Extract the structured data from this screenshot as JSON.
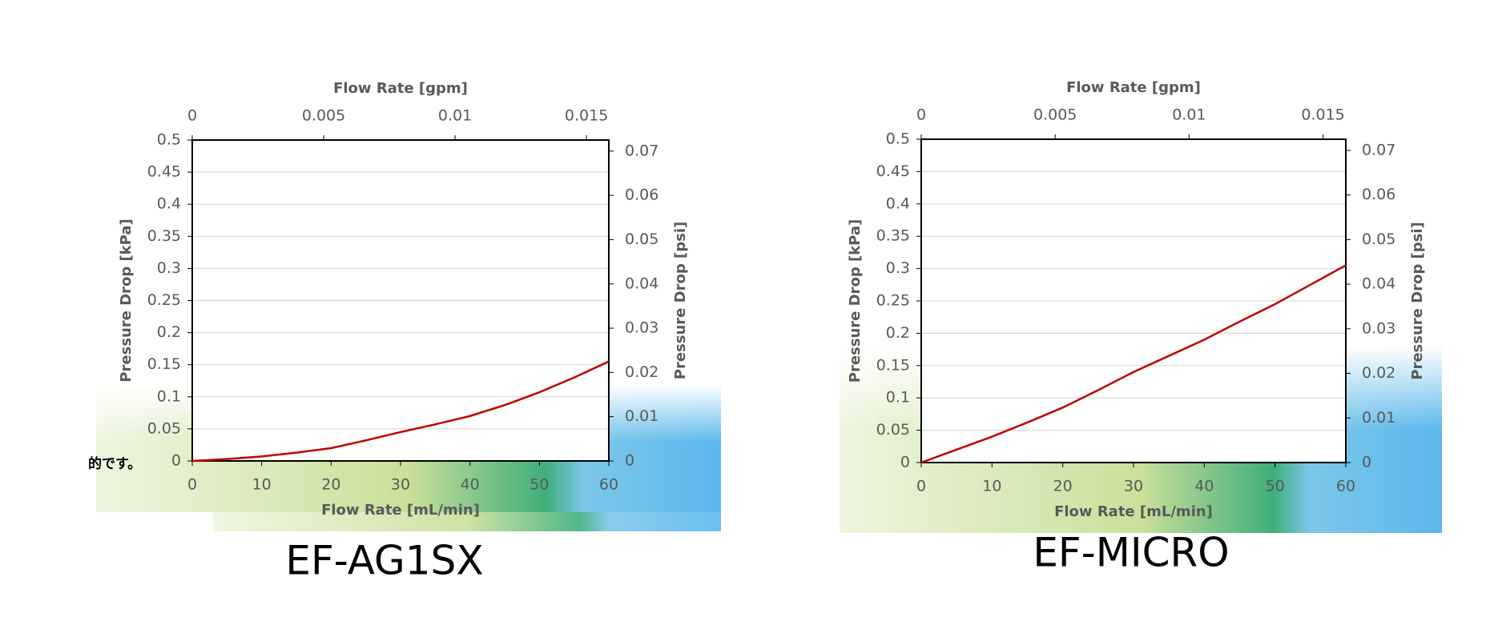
{
  "fragment": "的です。",
  "chart_data": [
    {
      "type": "line",
      "title": "EF-AG1SX",
      "x_label": "Flow Rate [mL/min]",
      "x2_label": "Flow Rate [gpm]",
      "y_label": "Pressure Drop [kPa]",
      "y2_label": "Pressure Drop [psi]",
      "x": [
        0,
        5,
        10,
        15,
        20,
        25,
        30,
        35,
        40,
        45,
        50,
        55,
        60
      ],
      "series": [
        {
          "name": "EF-AG1SX",
          "color": "#c00000",
          "values": [
            0,
            0.003,
            0.007,
            0.013,
            0.02,
            0.032,
            0.045,
            0.057,
            0.07,
            0.087,
            0.107,
            0.13,
            0.155
          ]
        }
      ],
      "xlim": [
        0,
        60
      ],
      "xticks": [
        0,
        10,
        20,
        30,
        40,
        50,
        60
      ],
      "x2lim": [
        0,
        0.01585
      ],
      "x2ticks": [
        0,
        0.005,
        0.01,
        0.015
      ],
      "ylim": [
        0,
        0.5
      ],
      "yticks": [
        0,
        0.05,
        0.1,
        0.15,
        0.2,
        0.25,
        0.3,
        0.35,
        0.4,
        0.45,
        0.5
      ],
      "y2lim": [
        0,
        0.0725
      ],
      "y2ticks": [
        0,
        0.01,
        0.02,
        0.03,
        0.04,
        0.05,
        0.06,
        0.07
      ],
      "grid": true
    },
    {
      "type": "line",
      "title": "EF-MICRO",
      "x_label": "Flow Rate [mL/min]",
      "x2_label": "Flow Rate [gpm]",
      "y_label": "Pressure Drop [kPa]",
      "y2_label": "Pressure Drop [psi]",
      "x": [
        0,
        5,
        10,
        15,
        20,
        25,
        30,
        35,
        40,
        45,
        50,
        55,
        60
      ],
      "series": [
        {
          "name": "EF-MICRO",
          "color": "#c00000",
          "values": [
            0,
            0.02,
            0.04,
            0.062,
            0.085,
            0.112,
            0.14,
            0.165,
            0.19,
            0.218,
            0.245,
            0.275,
            0.305
          ]
        }
      ],
      "xlim": [
        0,
        60
      ],
      "xticks": [
        0,
        10,
        20,
        30,
        40,
        50,
        60
      ],
      "x2lim": [
        0,
        0.01585
      ],
      "x2ticks": [
        0,
        0.005,
        0.01,
        0.015
      ],
      "ylim": [
        0,
        0.5
      ],
      "yticks": [
        0,
        0.05,
        0.1,
        0.15,
        0.2,
        0.25,
        0.3,
        0.35,
        0.4,
        0.45,
        0.5
      ],
      "y2lim": [
        0,
        0.0725
      ],
      "y2ticks": [
        0,
        0.01,
        0.02,
        0.03,
        0.04,
        0.05,
        0.06,
        0.07
      ],
      "grid": true
    }
  ]
}
